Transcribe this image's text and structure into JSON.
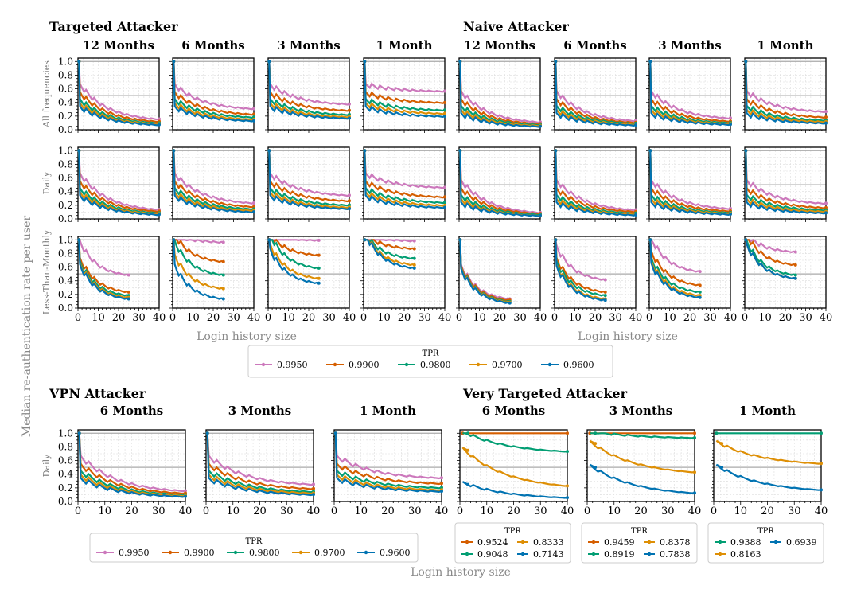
{
  "figure": {
    "ylabel": "Median re-authentication rate per user",
    "xlabel": "Login history size"
  },
  "colors": {
    "0.9950": "#cc78bc",
    "0.9900": "#d55e00",
    "0.9800": "#029e73",
    "0.9700": "#de8f05",
    "0.9600": "#0173b2"
  },
  "legends": {
    "top": {
      "title": "TPR",
      "entries": [
        "0.9950",
        "0.9900",
        "0.9800",
        "0.9700",
        "0.9600"
      ]
    },
    "vpn": {
      "title": "TPR",
      "entries": [
        "0.9950",
        "0.9900",
        "0.9800",
        "0.9700",
        "0.9600"
      ]
    },
    "vt6": {
      "title": "TPR",
      "entries": [
        "0.9524",
        "0.8333",
        "0.9048",
        "0.7143"
      ]
    },
    "vt3": {
      "title": "TPR",
      "entries": [
        "0.9459",
        "0.8378",
        "0.8919",
        "0.7838"
      ]
    },
    "vt1": {
      "title": "TPR",
      "entries": [
        "0.9388",
        "0.6939",
        "0.8163"
      ]
    }
  },
  "groups": {
    "targeted": "Targeted Attacker",
    "naive": "Naive Attacker",
    "vpn": "VPN Attacker",
    "very_targeted": "Very Targeted Attacker"
  },
  "rows": [
    "All frequencies",
    "Daily",
    "Less-Than-Monthly",
    "Daily"
  ],
  "columns_top": [
    "12 Months",
    "6 Months",
    "3 Months",
    "1 Month",
    "12 Months",
    "6 Months",
    "3 Months",
    "1 Month"
  ],
  "columns_bottom": [
    "6 Months",
    "3 Months",
    "1 Month",
    "6 Months",
    "3 Months",
    "1 Month"
  ],
  "axes": {
    "xticks": [
      "0",
      "10",
      "20",
      "30",
      "40"
    ],
    "yticks": [
      "0.0",
      "0.2",
      "0.4",
      "0.6",
      "0.8",
      "1.0"
    ],
    "xlim": [
      0,
      40
    ],
    "ylim": [
      0,
      1.05
    ],
    "grid": true
  },
  "chart_data": {
    "type": "line",
    "reference_lines_y": [
      0.5,
      1.0
    ],
    "series_params": {
      "legend": [
        "0.9950",
        "0.9900",
        "0.9800",
        "0.9700",
        "0.9600"
      ],
      "start_levels": [
        0.6,
        0.48,
        0.38,
        0.32,
        0.27
      ]
    },
    "panels": [
      {
        "group": "targeted",
        "col": "12 Months",
        "row": "All frequencies",
        "end": [
          0.12,
          0.09,
          0.07,
          0.06,
          0.05
        ],
        "xmax": 40
      },
      {
        "group": "targeted",
        "col": "6 Months",
        "row": "All frequencies",
        "end": [
          0.28,
          0.2,
          0.16,
          0.13,
          0.11
        ],
        "xmax": 40
      },
      {
        "group": "targeted",
        "col": "3 Months",
        "row": "All frequencies",
        "end": [
          0.35,
          0.26,
          0.2,
          0.17,
          0.15
        ],
        "xmax": 40
      },
      {
        "group": "targeted",
        "col": "1 Month",
        "row": "All frequencies",
        "end": [
          0.55,
          0.38,
          0.27,
          0.22,
          0.18
        ],
        "xmax": 40
      },
      {
        "group": "naive",
        "col": "12 Months",
        "row": "All frequencies",
        "end": [
          0.08,
          0.06,
          0.05,
          0.04,
          0.03
        ],
        "xmax": 40
      },
      {
        "group": "naive",
        "col": "6 Months",
        "row": "All frequencies",
        "end": [
          0.1,
          0.08,
          0.07,
          0.06,
          0.05
        ],
        "xmax": 40
      },
      {
        "group": "naive",
        "col": "3 Months",
        "row": "All frequencies",
        "end": [
          0.14,
          0.1,
          0.08,
          0.07,
          0.06
        ],
        "xmax": 40
      },
      {
        "group": "naive",
        "col": "1 Month",
        "row": "All frequencies",
        "end": [
          0.24,
          0.16,
          0.12,
          0.1,
          0.08
        ],
        "xmax": 40
      },
      {
        "group": "targeted",
        "col": "12 Months",
        "row": "Daily",
        "end": [
          0.1,
          0.08,
          0.06,
          0.05,
          0.04
        ],
        "xmax": 40
      },
      {
        "group": "targeted",
        "col": "6 Months",
        "row": "Daily",
        "end": [
          0.2,
          0.15,
          0.12,
          0.1,
          0.08
        ],
        "xmax": 40
      },
      {
        "group": "targeted",
        "col": "3 Months",
        "row": "Daily",
        "end": [
          0.32,
          0.24,
          0.18,
          0.15,
          0.13
        ],
        "xmax": 40
      },
      {
        "group": "targeted",
        "col": "1 Month",
        "row": "Daily",
        "end": [
          0.44,
          0.3,
          0.22,
          0.18,
          0.15
        ],
        "xmax": 40
      },
      {
        "group": "naive",
        "col": "12 Months",
        "row": "Daily",
        "end": [
          0.06,
          0.05,
          0.04,
          0.03,
          0.03
        ],
        "xmax": 40
      },
      {
        "group": "naive",
        "col": "6 Months",
        "row": "Daily",
        "end": [
          0.1,
          0.08,
          0.06,
          0.05,
          0.04
        ],
        "xmax": 40
      },
      {
        "group": "naive",
        "col": "3 Months",
        "row": "Daily",
        "end": [
          0.12,
          0.09,
          0.07,
          0.06,
          0.05
        ],
        "xmax": 40
      },
      {
        "group": "naive",
        "col": "1 Month",
        "row": "Daily",
        "end": [
          0.2,
          0.14,
          0.11,
          0.09,
          0.07
        ],
        "xmax": 40
      },
      {
        "group": "targeted",
        "col": "12 Months",
        "row": "Less-Than-Monthly",
        "end": [
          0.45,
          0.2,
          0.15,
          0.12,
          0.1
        ],
        "xmax": 25
      },
      {
        "group": "targeted",
        "col": "6 Months",
        "row": "Less-Than-Monthly",
        "end": [
          0.95,
          0.65,
          0.45,
          0.25,
          0.1
        ],
        "xmax": 25
      },
      {
        "group": "targeted",
        "col": "3 Months",
        "row": "Less-Than-Monthly",
        "end": [
          0.98,
          0.75,
          0.55,
          0.4,
          0.33
        ],
        "xmax": 25
      },
      {
        "group": "targeted",
        "col": "1 Month",
        "row": "Less-Than-Monthly",
        "end": [
          0.97,
          0.85,
          0.7,
          0.6,
          0.55
        ],
        "xmax": 25
      },
      {
        "group": "naive",
        "col": "12 Months",
        "row": "Less-Than-Monthly",
        "end": [
          0.1,
          0.08,
          0.06,
          0.05,
          0.04
        ],
        "xmax": 25
      },
      {
        "group": "naive",
        "col": "6 Months",
        "row": "Less-Than-Monthly",
        "end": [
          0.38,
          0.2,
          0.15,
          0.1,
          0.08
        ],
        "xmax": 25
      },
      {
        "group": "naive",
        "col": "3 Months",
        "row": "Less-Than-Monthly",
        "end": [
          0.5,
          0.3,
          0.2,
          0.15,
          0.12
        ],
        "xmax": 25
      },
      {
        "group": "naive",
        "col": "1 Month",
        "row": "Less-Than-Monthly",
        "end": [
          0.8,
          0.6,
          0.45,
          0.4,
          0.4
        ],
        "xmax": 25
      },
      {
        "group": "vpn",
        "col": "6 Months",
        "row": "Daily",
        "end": [
          0.12,
          0.09,
          0.07,
          0.06,
          0.05
        ],
        "xmax": 40
      },
      {
        "group": "vpn",
        "col": "3 Months",
        "row": "Daily",
        "end": [
          0.22,
          0.16,
          0.12,
          0.1,
          0.08
        ],
        "xmax": 40
      },
      {
        "group": "vpn",
        "col": "1 Month",
        "row": "Daily",
        "end": [
          0.32,
          0.24,
          0.18,
          0.15,
          0.13
        ],
        "xmax": 40
      }
    ],
    "very_targeted": [
      {
        "col": "6 Months",
        "series": [
          {
            "name": "0.9524",
            "color": "#d55e00",
            "start": 1.0,
            "end": 1.0
          },
          {
            "name": "0.9048",
            "color": "#029e73",
            "start": 1.0,
            "end": 0.7
          },
          {
            "name": "0.8333",
            "color": "#de8f05",
            "start": 0.75,
            "end": 0.17
          },
          {
            "name": "0.7143",
            "color": "#0173b2",
            "start": 0.25,
            "end": 0.03
          }
        ]
      },
      {
        "col": "3 Months",
        "series": [
          {
            "name": "0.9459",
            "color": "#d55e00",
            "start": 1.0,
            "end": 1.0
          },
          {
            "name": "0.8919",
            "color": "#029e73",
            "start": 1.0,
            "end": 0.92
          },
          {
            "name": "0.8378",
            "color": "#de8f05",
            "start": 0.85,
            "end": 0.38
          },
          {
            "name": "0.7838",
            "color": "#0173b2",
            "start": 0.5,
            "end": 0.08
          }
        ]
      },
      {
        "col": "1 Month",
        "series": [
          {
            "name": "0.9388",
            "color": "#029e73",
            "start": 1.0,
            "end": 1.0
          },
          {
            "name": "0.8163",
            "color": "#de8f05",
            "start": 0.85,
            "end": 0.52
          },
          {
            "name": "0.6939",
            "color": "#0173b2",
            "start": 0.5,
            "end": 0.13
          }
        ]
      }
    ]
  }
}
